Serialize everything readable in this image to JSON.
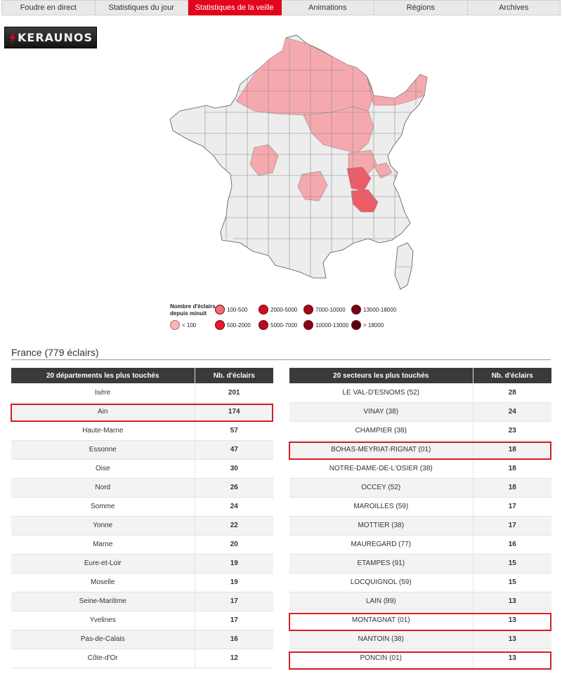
{
  "tabs": [
    {
      "label": "Foudre en direct"
    },
    {
      "label": "Statistiques du jour"
    },
    {
      "label": "Statistiques de la veille",
      "active": true
    },
    {
      "label": "Animations"
    },
    {
      "label": "Régions"
    },
    {
      "label": "Archives"
    }
  ],
  "logo": {
    "text": "KERAUNOS"
  },
  "legend": {
    "title": "Nombre d'éclairs depuis minuit",
    "items": [
      {
        "label": "< 100",
        "color": "#f8b6bb"
      },
      {
        "label": "100-500",
        "color": "#f06d79"
      },
      {
        "label": "500-2000",
        "color": "#e8192c"
      },
      {
        "label": "2000-5000",
        "color": "#cf0f24"
      },
      {
        "label": "5000-7000",
        "color": "#b70c1f"
      },
      {
        "label": "7000-10000",
        "color": "#9e0a1b"
      },
      {
        "label": "10000-13000",
        "color": "#850818"
      },
      {
        "label": "13000-18000",
        "color": "#6b0614"
      },
      {
        "label": "> 18000",
        "color": "#520410"
      }
    ]
  },
  "colors": {
    "no_strikes": "#ededed",
    "low": "#f5a9ae",
    "medium": "#ee5c67",
    "accent": "#e2051c",
    "highlight": "#d21f26"
  },
  "summary": {
    "title": "France (779 éclairs)"
  },
  "departments": {
    "header_name": "20 départements les plus touchés",
    "header_count": "Nb. d'éclairs",
    "rows": [
      {
        "name": "Isère",
        "count": "201"
      },
      {
        "name": "Ain",
        "count": "174"
      },
      {
        "name": "Haute-Marne",
        "count": "57"
      },
      {
        "name": "Essonne",
        "count": "47"
      },
      {
        "name": "Oise",
        "count": "30"
      },
      {
        "name": "Nord",
        "count": "26"
      },
      {
        "name": "Somme",
        "count": "24"
      },
      {
        "name": "Yonne",
        "count": "22"
      },
      {
        "name": "Marne",
        "count": "20"
      },
      {
        "name": "Eure-et-Loir",
        "count": "19"
      },
      {
        "name": "Moselle",
        "count": "19"
      },
      {
        "name": "Seine-Maritime",
        "count": "17"
      },
      {
        "name": "Yvelines",
        "count": "17"
      },
      {
        "name": "Pas-de-Calais",
        "count": "16"
      },
      {
        "name": "Côte-d'Or",
        "count": "12"
      }
    ]
  },
  "sectors": {
    "header_name": "20 secteurs les plus touchés",
    "header_count": "Nb. d'éclairs",
    "rows": [
      {
        "name": "LE VAL-D'ESNOMS (52)",
        "count": "28"
      },
      {
        "name": "VINAY (38)",
        "count": "24"
      },
      {
        "name": "CHAMPIER (38)",
        "count": "23"
      },
      {
        "name": "BOHAS-MEYRIAT-RIGNAT (01)",
        "count": "18"
      },
      {
        "name": "NOTRE-DAME-DE-L'OSIER (38)",
        "count": "18"
      },
      {
        "name": "OCCEY (52)",
        "count": "18"
      },
      {
        "name": "MAROILLES (59)",
        "count": "17"
      },
      {
        "name": "MOTTIER (38)",
        "count": "17"
      },
      {
        "name": "MAUREGARD (77)",
        "count": "16"
      },
      {
        "name": "ETAMPES (91)",
        "count": "15"
      },
      {
        "name": "LOCQUIGNOL (59)",
        "count": "15"
      },
      {
        "name": "LAIN (89)",
        "count": "13"
      },
      {
        "name": "MONTAGNAT (01)",
        "count": "13"
      },
      {
        "name": "NANTOIN (38)",
        "count": "13"
      },
      {
        "name": "PONCIN (01)",
        "count": "13"
      }
    ]
  }
}
